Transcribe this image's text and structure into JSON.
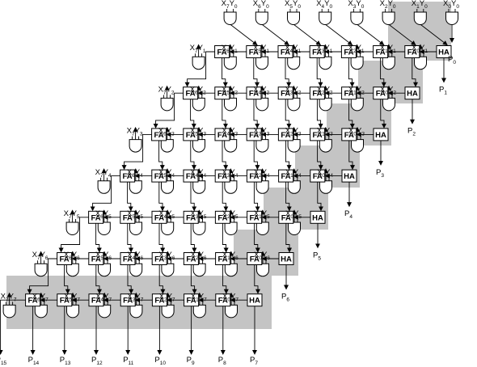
{
  "diagram": {
    "gate_labels": {
      "x_symbol": "X",
      "y_symbol": "Y"
    },
    "adders": {
      "full": "FA",
      "half": "HA"
    },
    "product_prefix": "P",
    "products": [
      "0",
      "1",
      "2",
      "3",
      "4",
      "5",
      "6",
      "7",
      "8",
      "9",
      "10",
      "11",
      "12",
      "13",
      "14",
      "15"
    ],
    "bits": 8,
    "colors": {
      "shading": "#c4c4c4",
      "lines": "#000000",
      "background": "#ffffff"
    }
  }
}
